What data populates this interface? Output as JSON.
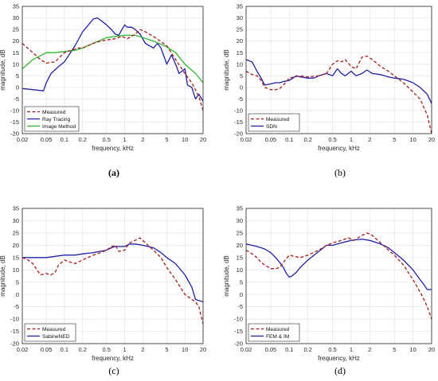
{
  "chart_data": [
    {
      "type": "line",
      "panel": "(a)",
      "xlabel": "frequency, kHz",
      "ylabel": "magnitude, dB",
      "xscale": "log",
      "xlim": [
        0.02,
        20
      ],
      "ylim": [
        -20,
        35
      ],
      "xticks": [
        "0.02",
        "0.05",
        "0.1",
        "0.2",
        "0.5",
        "1",
        "2",
        "5",
        "10",
        "20"
      ],
      "yticks": [
        "-20",
        "-15",
        "-10",
        "-5",
        "0",
        "5",
        "10",
        "15",
        "20",
        "25",
        "30",
        "35"
      ],
      "grid": true,
      "legend_position": "bottom-left",
      "series": [
        {
          "name": "Measured",
          "color": "#a81d1d",
          "style": "dashed",
          "x": [
            0.02,
            0.03,
            0.04,
            0.05,
            0.07,
            0.1,
            0.13,
            0.17,
            0.2,
            0.3,
            0.4,
            0.5,
            0.7,
            0.9,
            1.1,
            1.5,
            1.8,
            2.2,
            3,
            5,
            7,
            10,
            13,
            17,
            20
          ],
          "y": [
            19,
            15,
            12,
            10.5,
            11,
            15,
            16,
            17,
            17,
            19,
            20,
            20.5,
            21,
            22,
            21,
            23,
            25,
            24,
            22,
            18,
            12,
            6,
            2,
            -4,
            -10
          ]
        },
        {
          "name": "Ray Tracing",
          "color": "#1f1fa8",
          "style": "solid",
          "x": [
            0.02,
            0.03,
            0.045,
            0.05,
            0.06,
            0.08,
            0.1,
            0.15,
            0.2,
            0.25,
            0.3,
            0.35,
            0.4,
            0.5,
            0.6,
            0.7,
            0.8,
            0.9,
            1.0,
            1.1,
            1.3,
            1.5,
            1.8,
            2.2,
            3,
            3.5,
            4,
            5,
            6,
            7,
            8,
            10,
            11,
            13,
            15,
            17,
            20
          ],
          "y": [
            -0.5,
            -1,
            -1.5,
            2,
            6,
            9,
            11,
            18,
            24,
            27,
            29.5,
            30,
            29,
            27,
            25,
            23,
            22.5,
            25,
            27,
            26,
            26,
            25,
            23,
            19,
            17,
            19,
            17,
            10,
            14,
            10,
            6,
            8,
            1,
            0,
            -5,
            -3,
            -6
          ]
        },
        {
          "name": "Image Method",
          "color": "#2fb82f",
          "style": "solid",
          "x": [
            0.02,
            0.03,
            0.05,
            0.07,
            0.1,
            0.15,
            0.2,
            0.3,
            0.5,
            0.7,
            1.0,
            1.5,
            2,
            3,
            5,
            7,
            10,
            15,
            20
          ],
          "y": [
            8,
            12,
            15,
            15,
            15.5,
            16,
            17,
            19,
            21.5,
            22,
            22.5,
            22.5,
            21.5,
            20,
            17.5,
            15,
            10,
            6,
            2
          ]
        }
      ]
    },
    {
      "type": "line",
      "panel": "(b)",
      "xlabel": "frequency, kHz",
      "ylabel": "magnitude, dB",
      "xscale": "log",
      "xlim": [
        0.02,
        20
      ],
      "ylim": [
        -20,
        35
      ],
      "xticks": [
        "0.02",
        "0.05",
        "0.1",
        "0.2",
        "0.5",
        "1",
        "2",
        "5",
        "10",
        "20"
      ],
      "yticks": [
        "-20",
        "-15",
        "-10",
        "-5",
        "0",
        "5",
        "10",
        "15",
        "20",
        "25",
        "30",
        "35"
      ],
      "grid": true,
      "legend_position": "bottom-left",
      "series": [
        {
          "name": "Measured",
          "color": "#a81d1d",
          "style": "dashed",
          "x": [
            0.02,
            0.025,
            0.03,
            0.035,
            0.04,
            0.05,
            0.06,
            0.07,
            0.08,
            0.1,
            0.15,
            0.2,
            0.3,
            0.4,
            0.5,
            0.6,
            0.7,
            0.8,
            1.0,
            1.2,
            1.5,
            1.8,
            2.2,
            3,
            4,
            5,
            7,
            10,
            13,
            17,
            20
          ],
          "y": [
            7,
            5.5,
            5,
            3,
            0,
            -1,
            -1,
            -0.5,
            1,
            4,
            5,
            4.5,
            5,
            6,
            10,
            11.5,
            11,
            12,
            9,
            8,
            13,
            13.5,
            12,
            9,
            7,
            5,
            2,
            -2,
            -5,
            -12,
            -20
          ]
        },
        {
          "name": "SDN",
          "color": "#1f1fa8",
          "style": "solid",
          "x": [
            0.02,
            0.025,
            0.03,
            0.035,
            0.04,
            0.05,
            0.06,
            0.07,
            0.08,
            0.1,
            0.13,
            0.15,
            0.2,
            0.25,
            0.3,
            0.4,
            0.5,
            0.6,
            0.7,
            0.8,
            1.0,
            1.2,
            1.5,
            1.8,
            2.2,
            3,
            4,
            5,
            7,
            10,
            13,
            17,
            20
          ],
          "y": [
            12,
            11,
            7,
            4,
            1,
            1.5,
            2,
            2,
            2.5,
            3,
            5,
            4.5,
            4,
            4,
            5,
            6,
            5,
            8,
            6,
            5,
            7,
            5,
            6,
            7.5,
            6,
            5.5,
            4.5,
            4,
            3.5,
            2,
            0,
            -3,
            -7
          ]
        }
      ]
    },
    {
      "type": "line",
      "panel": "(c)",
      "xlabel": "frequency, kHz",
      "ylabel": "magnitude, dB",
      "xscale": "log",
      "xlim": [
        0.02,
        20
      ],
      "ylim": [
        -20,
        35
      ],
      "xticks": [
        "0.02",
        "0.05",
        "0.1",
        "0.2",
        "0.5",
        "1",
        "2",
        "5",
        "10",
        "20"
      ],
      "yticks": [
        "-20",
        "-15",
        "-10",
        "-5",
        "0",
        "5",
        "10",
        "15",
        "20",
        "25",
        "30",
        "35"
      ],
      "grid": true,
      "legend_position": "bottom-left",
      "series": [
        {
          "name": "Measured",
          "color": "#a81d1d",
          "style": "dashed",
          "x": [
            0.02,
            0.025,
            0.03,
            0.035,
            0.04,
            0.05,
            0.06,
            0.07,
            0.08,
            0.1,
            0.13,
            0.15,
            0.2,
            0.3,
            0.4,
            0.5,
            0.6,
            0.7,
            0.8,
            1.0,
            1.2,
            1.5,
            1.8,
            2.2,
            3,
            4,
            5,
            7,
            10,
            13,
            15,
            17,
            20
          ],
          "y": [
            15,
            14,
            12.5,
            10,
            8,
            8.5,
            8,
            9,
            12,
            14,
            13,
            12.5,
            14,
            16,
            17,
            18,
            19.5,
            20,
            17.5,
            18,
            21,
            22,
            23,
            21,
            18,
            15,
            11,
            6,
            0,
            -2,
            -3,
            -5,
            -12
          ]
        },
        {
          "name": "SabineNED",
          "color": "#1f1fa8",
          "style": "solid",
          "x": [
            0.02,
            0.03,
            0.05,
            0.07,
            0.1,
            0.15,
            0.2,
            0.3,
            0.5,
            0.6,
            0.7,
            0.8,
            1.0,
            1.2,
            1.5,
            2,
            3,
            4,
            5,
            7,
            10,
            13,
            15,
            17,
            20
          ],
          "y": [
            15,
            15,
            15,
            15.5,
            16,
            16,
            16.5,
            17,
            18,
            19,
            19.5,
            19.5,
            19.5,
            20.5,
            20.5,
            20,
            19,
            17,
            15,
            12.5,
            8,
            3,
            -2,
            -2.5,
            -3
          ]
        }
      ]
    },
    {
      "type": "line",
      "panel": "(d)",
      "xlabel": "frequency, kHz",
      "ylabel": "magnitude, dB",
      "xscale": "log",
      "xlim": [
        0.02,
        20
      ],
      "ylim": [
        -20,
        35
      ],
      "xticks": [
        "0.02",
        "0.05",
        "0.1",
        "0.2",
        "0.5",
        "1",
        "2",
        "5",
        "10",
        "20"
      ],
      "yticks": [
        "-20",
        "-15",
        "-10",
        "-5",
        "0",
        "5",
        "10",
        "15",
        "20",
        "25",
        "30",
        "35"
      ],
      "grid": true,
      "legend_position": "bottom-left",
      "series": [
        {
          "name": "Measured",
          "color": "#a81d1d",
          "style": "dashed",
          "x": [
            0.02,
            0.025,
            0.03,
            0.035,
            0.04,
            0.05,
            0.06,
            0.07,
            0.08,
            0.1,
            0.12,
            0.15,
            0.2,
            0.3,
            0.4,
            0.5,
            0.7,
            0.9,
            1.1,
            1.5,
            1.8,
            2.2,
            3,
            4,
            5,
            7,
            10,
            13,
            15,
            17,
            20
          ],
          "y": [
            18,
            16.5,
            15,
            13,
            12,
            10.5,
            10.5,
            11,
            13,
            16,
            15.5,
            15,
            16,
            18,
            20,
            21,
            22,
            23,
            22,
            24,
            25,
            24,
            21,
            18,
            16,
            12,
            6,
            1,
            -2,
            -5,
            -10
          ]
        },
        {
          "name": "FEM & IM",
          "color": "#1f1fa8",
          "style": "solid",
          "x": [
            0.02,
            0.025,
            0.03,
            0.04,
            0.05,
            0.06,
            0.07,
            0.08,
            0.09,
            0.1,
            0.11,
            0.13,
            0.15,
            0.2,
            0.3,
            0.4,
            0.5,
            0.7,
            1.0,
            1.5,
            2,
            3,
            4,
            5,
            7,
            10,
            13,
            15,
            17,
            20
          ],
          "y": [
            20.5,
            20,
            19.5,
            18.5,
            17,
            15,
            13,
            11,
            8.5,
            7,
            7.5,
            9,
            11,
            14,
            17.5,
            20,
            20,
            21,
            22,
            22.5,
            22,
            20.5,
            19,
            17,
            14,
            10,
            6,
            4,
            2,
            2
          ]
        }
      ]
    }
  ],
  "captions": [
    "(a)",
    "(b)",
    "(c)",
    "(d)"
  ]
}
